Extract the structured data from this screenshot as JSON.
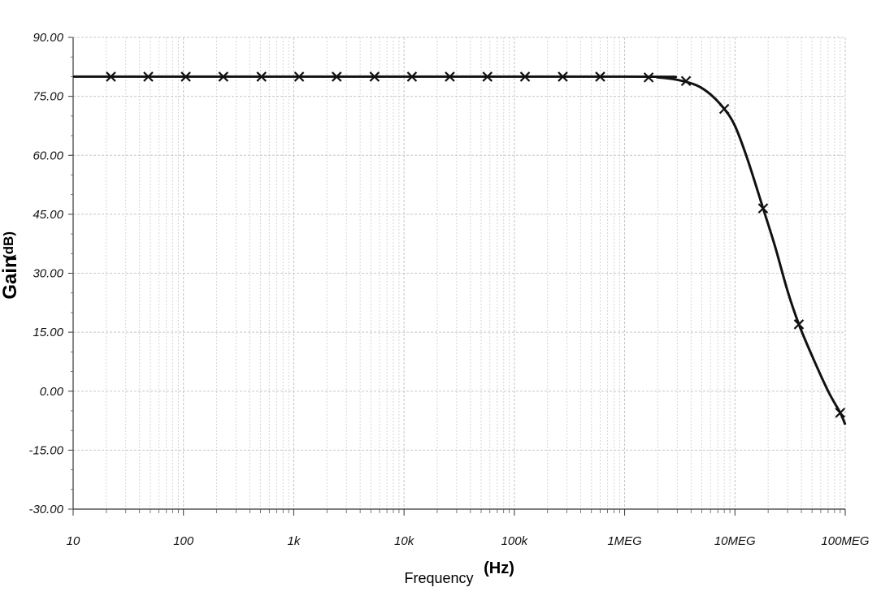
{
  "chart_data": {
    "type": "line",
    "xscale": "log",
    "xlabel": "Frequency",
    "xlabel_unit": "(Hz)",
    "ylabel": "Gain",
    "ylabel_unit": "(dB)",
    "xlim": [
      10,
      100000000
    ],
    "ylim": [
      -30,
      90
    ],
    "grid": true,
    "x_ticks": [
      {
        "value": 10,
        "label": "10"
      },
      {
        "value": 100,
        "label": "100"
      },
      {
        "value": 1000,
        "label": "1k"
      },
      {
        "value": 10000,
        "label": "10k"
      },
      {
        "value": 100000,
        "label": "100k"
      },
      {
        "value": 1000000,
        "label": "1MEG"
      },
      {
        "value": 10000000,
        "label": "10MEG"
      },
      {
        "value": 100000000,
        "label": "100MEG"
      }
    ],
    "y_ticks": [
      {
        "value": 90,
        "label": "90.00"
      },
      {
        "value": 75,
        "label": "75.00"
      },
      {
        "value": 60,
        "label": "60.00"
      },
      {
        "value": 45,
        "label": "45.00"
      },
      {
        "value": 30,
        "label": "30.00"
      },
      {
        "value": 15,
        "label": "15.00"
      },
      {
        "value": 0,
        "label": "0.00"
      },
      {
        "value": -15,
        "label": "-15.00"
      },
      {
        "value": -30,
        "label": "-30.00"
      }
    ],
    "series": [
      {
        "color": "#111111",
        "marker": "x",
        "curve": [
          {
            "x": 10,
            "y": 80
          },
          {
            "x": 1000000,
            "y": 80
          },
          {
            "x": 2000000,
            "y": 79.8
          },
          {
            "x": 3000000,
            "y": 79.2
          },
          {
            "x": 4500000,
            "y": 77.8
          },
          {
            "x": 6000000,
            "y": 75.5
          },
          {
            "x": 8000000,
            "y": 71.8
          },
          {
            "x": 10000000,
            "y": 67.5
          },
          {
            "x": 13000000,
            "y": 59
          },
          {
            "x": 18000000,
            "y": 46.5
          },
          {
            "x": 23000000,
            "y": 37
          },
          {
            "x": 30000000,
            "y": 25.5
          },
          {
            "x": 38000000,
            "y": 17
          },
          {
            "x": 50000000,
            "y": 9
          },
          {
            "x": 70000000,
            "y": 0
          },
          {
            "x": 90000000,
            "y": -5.5
          },
          {
            "x": 100000000,
            "y": -8.5
          }
        ],
        "markers": [
          {
            "x": 22,
            "y": 80
          },
          {
            "x": 48,
            "y": 80
          },
          {
            "x": 105,
            "y": 80
          },
          {
            "x": 230,
            "y": 80
          },
          {
            "x": 510,
            "y": 80
          },
          {
            "x": 1120,
            "y": 80
          },
          {
            "x": 2450,
            "y": 80
          },
          {
            "x": 5400,
            "y": 80
          },
          {
            "x": 11800,
            "y": 80
          },
          {
            "x": 26000,
            "y": 80
          },
          {
            "x": 57000,
            "y": 80
          },
          {
            "x": 125000,
            "y": 80
          },
          {
            "x": 275000,
            "y": 80
          },
          {
            "x": 600000,
            "y": 80
          },
          {
            "x": 1650000,
            "y": 79.8
          },
          {
            "x": 3600000,
            "y": 78.9
          },
          {
            "x": 8000000,
            "y": 71.8
          },
          {
            "x": 18000000,
            "y": 46.5
          },
          {
            "x": 38000000,
            "y": 17
          },
          {
            "x": 90000000,
            "y": -5.5
          }
        ]
      }
    ]
  }
}
